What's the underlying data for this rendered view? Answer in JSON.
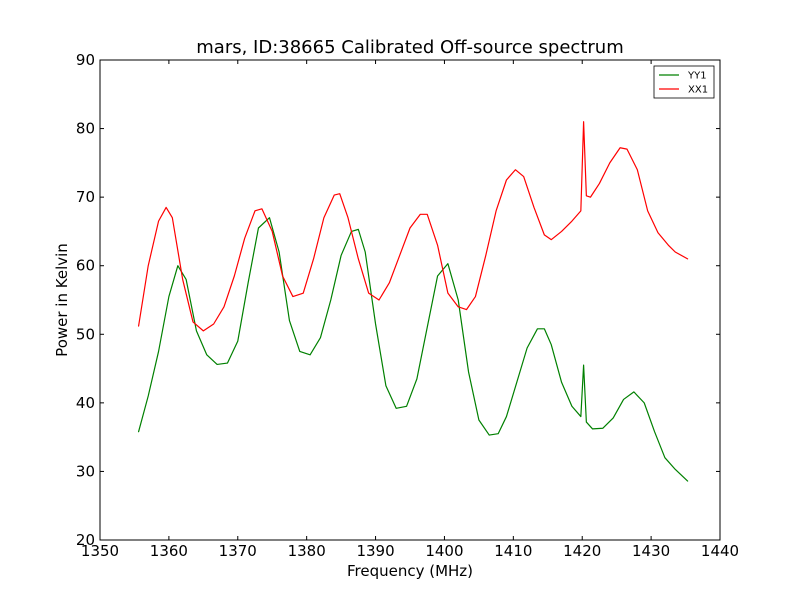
{
  "chart_data": {
    "type": "line",
    "title": "mars, ID:38665 Calibrated Off-source spectrum",
    "xlabel": "Frequency (MHz)",
    "ylabel": "Power in Kelvin",
    "xlim": [
      1350,
      1440
    ],
    "ylim": [
      20,
      90
    ],
    "xticks": [
      1350,
      1360,
      1370,
      1380,
      1390,
      1400,
      1410,
      1420,
      1430,
      1440
    ],
    "yticks": [
      20,
      30,
      40,
      50,
      60,
      70,
      80,
      90
    ],
    "grid": false,
    "legend_position": "top-right",
    "series": [
      {
        "name": "YY1",
        "color": "#008000",
        "x": [
          1355.6,
          1357,
          1358.5,
          1360,
          1361.3,
          1362.5,
          1364,
          1365.5,
          1367,
          1368.5,
          1370,
          1371.5,
          1373,
          1374.6,
          1376,
          1377.5,
          1379,
          1380.5,
          1382,
          1383.5,
          1385,
          1386.5,
          1387.5,
          1388.5,
          1390,
          1391.5,
          1393,
          1394.5,
          1396,
          1397.5,
          1399,
          1400.5,
          1402,
          1403.5,
          1405,
          1406.5,
          1407.8,
          1409,
          1410.5,
          1412,
          1413.5,
          1414.5,
          1415.5,
          1417,
          1418.5,
          1419.8,
          1420.2,
          1420.6,
          1421.5,
          1423,
          1424.5,
          1426,
          1427.5,
          1429,
          1430.5,
          1432,
          1433.5,
          1435.3
        ],
        "values": [
          35.8,
          41.0,
          47.5,
          55.5,
          60.0,
          58.0,
          50.5,
          47.0,
          45.6,
          45.8,
          49.0,
          57.5,
          65.5,
          67.0,
          62.0,
          52.0,
          47.5,
          47.0,
          49.5,
          55.0,
          61.5,
          65.0,
          65.3,
          62.0,
          51.5,
          42.5,
          39.2,
          39.5,
          43.5,
          51.0,
          58.5,
          60.3,
          55.0,
          44.5,
          37.5,
          35.3,
          35.5,
          38.0,
          43.0,
          48.0,
          50.8,
          50.8,
          48.5,
          43.0,
          39.5,
          38.0,
          45.5,
          37.2,
          36.2,
          36.3,
          37.8,
          40.5,
          41.6,
          40.0,
          35.8,
          32.0,
          30.3,
          28.6
        ]
      },
      {
        "name": "XX1",
        "color": "#ff0000",
        "x": [
          1355.6,
          1357,
          1358.5,
          1359.6,
          1360.5,
          1362,
          1363.5,
          1365,
          1366.5,
          1368,
          1369.5,
          1371,
          1372.5,
          1373.5,
          1375,
          1376.5,
          1378,
          1379.5,
          1381,
          1382.5,
          1384,
          1384.8,
          1386,
          1387.5,
          1389,
          1390.5,
          1392,
          1393.5,
          1395,
          1396.5,
          1397.5,
          1399,
          1400.5,
          1402,
          1403.2,
          1404.5,
          1406,
          1407.5,
          1409,
          1410.3,
          1411.5,
          1413,
          1414.5,
          1415.5,
          1417,
          1418.5,
          1419.8,
          1420.2,
          1420.6,
          1421.2,
          1422.5,
          1424,
          1425.5,
          1426.5,
          1428,
          1429.5,
          1431,
          1432.5,
          1433.5,
          1435.3
        ],
        "values": [
          51.2,
          60.0,
          66.5,
          68.5,
          67.0,
          58.0,
          51.8,
          50.5,
          51.5,
          54.0,
          58.5,
          64.0,
          68.0,
          68.3,
          65.0,
          58.5,
          55.5,
          56.0,
          61.0,
          67.0,
          70.3,
          70.5,
          67.0,
          61.0,
          56.0,
          55.0,
          57.5,
          61.5,
          65.5,
          67.5,
          67.5,
          63.0,
          56.0,
          54.0,
          53.6,
          55.5,
          61.5,
          68.0,
          72.5,
          74.0,
          73.0,
          68.5,
          64.5,
          63.8,
          65.0,
          66.5,
          68.0,
          81.0,
          70.2,
          70.0,
          72.0,
          75.0,
          77.2,
          77.0,
          74.0,
          68.0,
          64.8,
          63.0,
          62.0,
          61.0
        ]
      }
    ]
  }
}
